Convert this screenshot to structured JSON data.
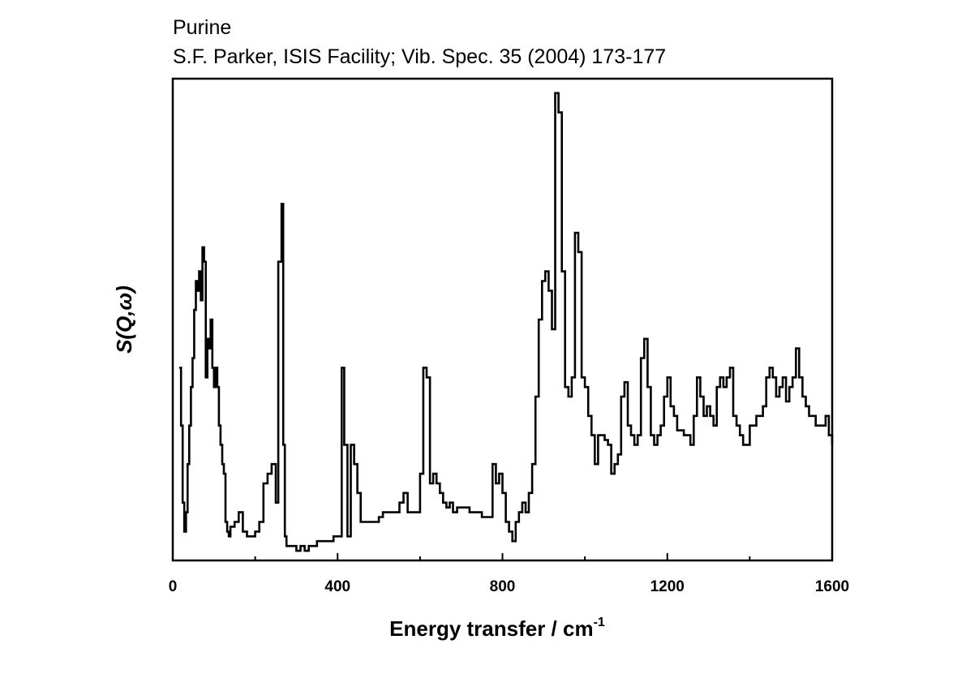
{
  "chart_data": {
    "type": "line",
    "title": "Purine",
    "subtitle": "S.F. Parker, ISIS Facility; Vib. Spec. 35 (2004) 173-177",
    "xlabel": "Energy transfer / cm",
    "xlabel_superscript": "-1",
    "ylabel": "S(Q,ω)",
    "xlim": [
      0,
      1600
    ],
    "ylim": [
      0,
      100
    ],
    "y_tick_labels": false,
    "x_ticks": [
      0,
      400,
      800,
      1200,
      1600
    ],
    "x_tick_labels": [
      "0",
      "400",
      "800",
      "1200",
      "1600"
    ],
    "x_minor_ticks": [
      200,
      600,
      1000,
      1400
    ],
    "line_style": "step",
    "grid": false,
    "legend": "none",
    "line_color": "#000000",
    "series": [
      {
        "x": [
          16,
          20,
          24,
          28,
          32,
          36,
          40,
          44,
          48,
          52,
          56,
          60,
          64,
          68,
          72,
          76,
          80,
          84,
          88,
          92,
          96,
          100,
          104,
          108,
          112,
          116,
          120,
          124,
          128,
          132,
          136,
          140,
          150,
          160,
          170,
          180,
          190,
          200,
          210,
          220,
          230,
          240,
          250,
          256,
          264,
          268,
          272,
          276,
          280,
          290,
          300,
          310,
          320,
          330,
          340,
          350,
          360,
          370,
          380,
          390,
          400,
          410,
          416,
          424,
          432,
          440,
          448,
          456,
          464,
          472,
          480,
          490,
          500,
          510,
          520,
          530,
          540,
          550,
          560,
          570,
          580,
          590,
          600,
          608,
          616,
          624,
          632,
          640,
          648,
          656,
          664,
          672,
          680,
          690,
          700,
          710,
          720,
          730,
          740,
          750,
          760,
          770,
          776,
          784,
          792,
          800,
          808,
          816,
          824,
          832,
          840,
          848,
          856,
          864,
          872,
          880,
          888,
          896,
          904,
          912,
          920,
          928,
          936,
          944,
          952,
          960,
          968,
          976,
          984,
          992,
          1000,
          1008,
          1016,
          1024,
          1032,
          1040,
          1048,
          1056,
          1064,
          1072,
          1080,
          1088,
          1096,
          1104,
          1112,
          1120,
          1128,
          1136,
          1144,
          1152,
          1160,
          1168,
          1176,
          1184,
          1192,
          1200,
          1208,
          1216,
          1224,
          1232,
          1240,
          1248,
          1256,
          1264,
          1272,
          1280,
          1288,
          1296,
          1304,
          1312,
          1320,
          1328,
          1336,
          1344,
          1352,
          1360,
          1368,
          1376,
          1384,
          1392,
          1400,
          1408,
          1416,
          1424,
          1432,
          1440,
          1448,
          1456,
          1464,
          1472,
          1480,
          1488,
          1496,
          1504,
          1512,
          1520,
          1528,
          1536,
          1544,
          1552,
          1560,
          1568,
          1576,
          1584,
          1592,
          1600
        ],
        "y": [
          40,
          28,
          12,
          6,
          10,
          20,
          28,
          36,
          42,
          52,
          58,
          56,
          60,
          54,
          65,
          62,
          38,
          46,
          44,
          50,
          40,
          36,
          40,
          36,
          28,
          24,
          20,
          18,
          8,
          6,
          5,
          7,
          8,
          10,
          6,
          5,
          5,
          6,
          8,
          16,
          18,
          20,
          12,
          62,
          74,
          24,
          5,
          3,
          3,
          3,
          2,
          3,
          2,
          3,
          3,
          4,
          4,
          4,
          4,
          5,
          5,
          40,
          24,
          5,
          24,
          20,
          14,
          8,
          8,
          8,
          8,
          8,
          9,
          10,
          10,
          10,
          10,
          12,
          14,
          10,
          10,
          10,
          18,
          40,
          38,
          16,
          18,
          16,
          14,
          12,
          11,
          12,
          10,
          11,
          11,
          11,
          10,
          10,
          10,
          9,
          9,
          9,
          20,
          16,
          18,
          14,
          8,
          6,
          4,
          8,
          10,
          12,
          10,
          14,
          20,
          34,
          50,
          58,
          60,
          56,
          48,
          97,
          93,
          60,
          36,
          34,
          38,
          68,
          64,
          38,
          36,
          30,
          26,
          20,
          26,
          26,
          25,
          24,
          18,
          20,
          22,
          34,
          37,
          28,
          26,
          24,
          26,
          42,
          46,
          36,
          26,
          24,
          26,
          28,
          34,
          38,
          32,
          30,
          27,
          27,
          26,
          26,
          24,
          30,
          38,
          34,
          30,
          32,
          30,
          28,
          36,
          38,
          36,
          38,
          40,
          30,
          28,
          26,
          24,
          24,
          28,
          28,
          30,
          30,
          32,
          38,
          40,
          38,
          34,
          36,
          38,
          33,
          36,
          38,
          44,
          38,
          34,
          32,
          30,
          30,
          28,
          28,
          28,
          30,
          26,
          24
        ]
      }
    ]
  }
}
